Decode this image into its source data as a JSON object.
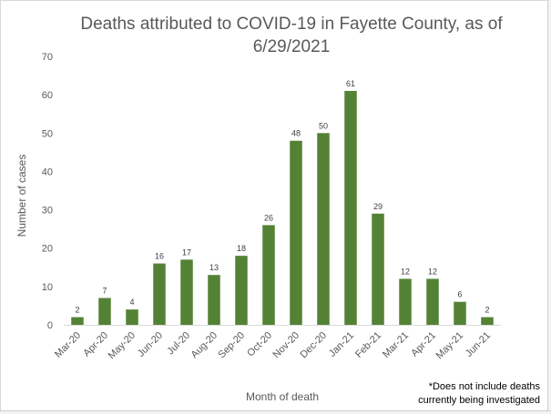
{
  "chart_data": {
    "type": "bar",
    "title_line1": "Deaths attributed to COVID-19 in Fayette County, as of",
    "title_line2": "6/29/2021",
    "xlabel": "Month of death",
    "ylabel": "Number of cases",
    "ylim": [
      0,
      70
    ],
    "yticks": [
      0,
      10,
      20,
      30,
      40,
      50,
      60,
      70
    ],
    "categories": [
      "Mar-20",
      "Apr-20",
      "May-20",
      "Jun-20",
      "Jul-20",
      "Aug-20",
      "Sep-20",
      "Oct-20",
      "Nov-20",
      "Dec-20",
      "Jan-21",
      "Feb-21",
      "Mar-21",
      "Apr-21",
      "May-21",
      "Jun-21"
    ],
    "values": [
      2,
      7,
      4,
      16,
      17,
      13,
      18,
      26,
      48,
      50,
      61,
      29,
      12,
      12,
      6,
      2
    ],
    "bar_color": "#548235",
    "grid": false,
    "legend": "none",
    "footnote_line1": "*Does not include deaths",
    "footnote_line2": "currently being investigated"
  }
}
